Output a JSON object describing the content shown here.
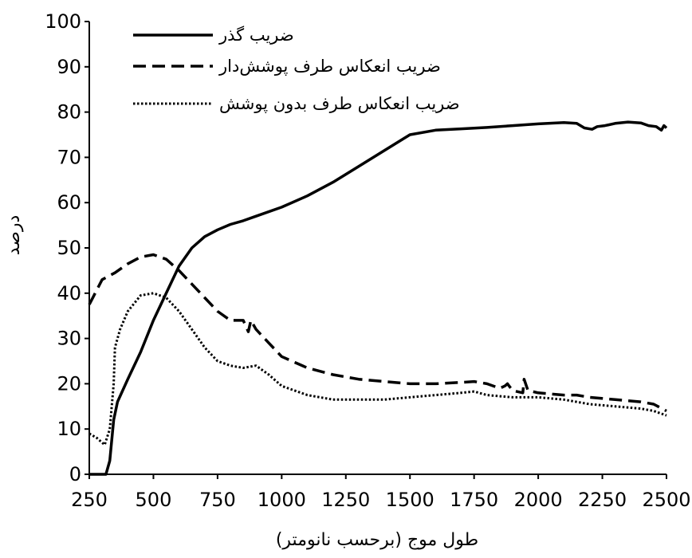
{
  "chart_data": {
    "type": "line",
    "xlabel": "طول موج (برحسب نانومتر)",
    "ylabel": "درصد",
    "xlim": [
      250,
      2500
    ],
    "ylim": [
      0,
      100
    ],
    "xticks": [
      250,
      500,
      750,
      1000,
      1250,
      1500,
      1750,
      2000,
      2250,
      2500
    ],
    "yticks": [
      0,
      10,
      20,
      30,
      40,
      50,
      60,
      70,
      80,
      90,
      100
    ],
    "grid": false,
    "legend_position": "top-left",
    "series": [
      {
        "name": "ضریب گذر",
        "style": "solid",
        "x": [
          250,
          300,
          315,
          330,
          345,
          360,
          400,
          450,
          500,
          550,
          600,
          650,
          700,
          750,
          800,
          850,
          900,
          1000,
          1100,
          1200,
          1300,
          1400,
          1500,
          1600,
          1700,
          1800,
          1900,
          2000,
          2100,
          2150,
          2180,
          2210,
          2230,
          2260,
          2300,
          2350,
          2400,
          2430,
          2460,
          2480,
          2490,
          2500
        ],
        "values": [
          0,
          0,
          0,
          3,
          12,
          16,
          21,
          27,
          34,
          40,
          46,
          50,
          52.5,
          54,
          55.2,
          56,
          57,
          59,
          61.5,
          64.5,
          68,
          71.5,
          75,
          76,
          76.3,
          76.6,
          77,
          77.4,
          77.7,
          77.5,
          76.5,
          76.2,
          76.8,
          77,
          77.5,
          77.8,
          77.6,
          77,
          76.8,
          76,
          77,
          76.5
        ]
      },
      {
        "name": "ضریب انعکاس طرف پوشش‌دار",
        "style": "dashed",
        "x": [
          250,
          300,
          350,
          400,
          450,
          500,
          550,
          600,
          650,
          700,
          750,
          800,
          850,
          870,
          880,
          900,
          950,
          1000,
          1100,
          1200,
          1300,
          1400,
          1500,
          1600,
          1700,
          1750,
          1800,
          1850,
          1870,
          1880,
          1900,
          1940,
          1945,
          1960,
          2000,
          2100,
          2150,
          2200,
          2300,
          2400,
          2450,
          2500
        ],
        "values": [
          37.5,
          43,
          44.5,
          46.5,
          48,
          48.5,
          47.5,
          45,
          42,
          39,
          36,
          34,
          34,
          31.5,
          34,
          32,
          29,
          26,
          23.5,
          22,
          21,
          20.5,
          20,
          20,
          20.3,
          20.5,
          20,
          19,
          19.5,
          20,
          18.5,
          18,
          21,
          18.5,
          18,
          17.5,
          17.5,
          17,
          16.5,
          16,
          15.5,
          14
        ]
      },
      {
        "name": "ضریب انعکاس طرف بدون پوشش",
        "style": "dotted",
        "x": [
          250,
          280,
          310,
          330,
          345,
          350,
          370,
          400,
          450,
          500,
          550,
          600,
          650,
          700,
          750,
          800,
          850,
          900,
          950,
          1000,
          1100,
          1200,
          1300,
          1400,
          1500,
          1600,
          1700,
          1750,
          1800,
          1900,
          2000,
          2100,
          2200,
          2300,
          2400,
          2450,
          2500
        ],
        "values": [
          9,
          8,
          6.5,
          10,
          20,
          28,
          32,
          36,
          39.5,
          40,
          39,
          36,
          32,
          28,
          25,
          24,
          23.5,
          24,
          22,
          19.5,
          17.5,
          16.5,
          16.5,
          16.5,
          17,
          17.5,
          18,
          18.3,
          17.5,
          17,
          17,
          16.5,
          15.5,
          15,
          14.5,
          14,
          13
        ]
      }
    ]
  }
}
